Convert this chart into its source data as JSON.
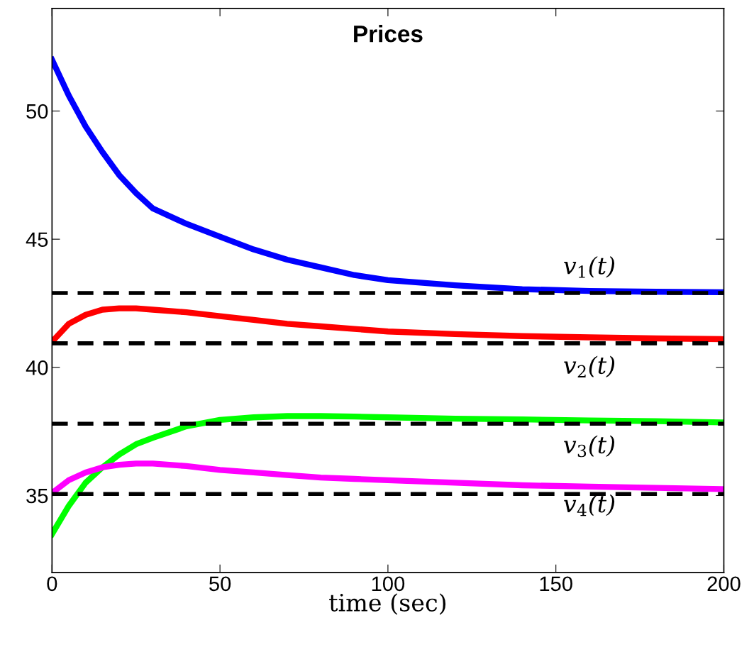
{
  "chart_data": {
    "type": "line",
    "title": "Prices",
    "xlabel": "time (sec)",
    "x": [
      0,
      5,
      10,
      15,
      20,
      25,
      30,
      40,
      50,
      60,
      70,
      80,
      90,
      100,
      120,
      140,
      160,
      180,
      200
    ],
    "series": [
      {
        "name": "v$_{1}$(t)",
        "color": "#0000ff",
        "values": [
          52,
          50.6,
          49.4,
          48.4,
          47.5,
          46.8,
          46.2,
          45.6,
          45.1,
          44.6,
          44.2,
          43.9,
          43.6,
          43.4,
          43.2,
          43.05,
          42.98,
          42.95,
          42.93
        ]
      },
      {
        "name": "v$_{2}$(t)",
        "color": "#ff0000",
        "values": [
          41.0,
          41.7,
          42.05,
          42.25,
          42.3,
          42.3,
          42.25,
          42.15,
          42.0,
          41.85,
          41.7,
          41.6,
          41.5,
          41.4,
          41.3,
          41.22,
          41.17,
          41.13,
          41.1
        ]
      },
      {
        "name": "v$_{3}$(t)",
        "color": "#00ff00",
        "values": [
          33.5,
          34.6,
          35.5,
          36.1,
          36.6,
          37.0,
          37.25,
          37.7,
          37.95,
          38.05,
          38.1,
          38.1,
          38.08,
          38.05,
          38.0,
          37.97,
          37.93,
          37.9,
          37.85
        ]
      },
      {
        "name": "v$_{4}$(t)",
        "color": "#ff00ff",
        "values": [
          35.1,
          35.6,
          35.9,
          36.1,
          36.2,
          36.25,
          36.25,
          36.15,
          36.0,
          35.9,
          35.8,
          35.7,
          35.65,
          35.6,
          35.5,
          35.4,
          35.35,
          35.3,
          35.25
        ]
      }
    ],
    "ref_lines": [
      {
        "axis": "y",
        "value": 42.9,
        "color": "#000000",
        "line_style": "dashed"
      },
      {
        "axis": "y",
        "value": 40.94,
        "color": "#000000",
        "line_style": "dashed"
      },
      {
        "axis": "y",
        "value": 37.8,
        "color": "#000000",
        "line_style": "dashed"
      },
      {
        "axis": "y",
        "value": 35.06,
        "color": "#000000",
        "line_style": "dashed"
      }
    ],
    "xlim": [
      0,
      200
    ],
    "ylim": [
      32,
      54
    ],
    "xticks": [
      0,
      50,
      100,
      150,
      200
    ],
    "yticks": [
      35,
      40,
      45,
      50
    ],
    "grid": false,
    "legend": false,
    "marker": "none",
    "line_style": "solid"
  }
}
